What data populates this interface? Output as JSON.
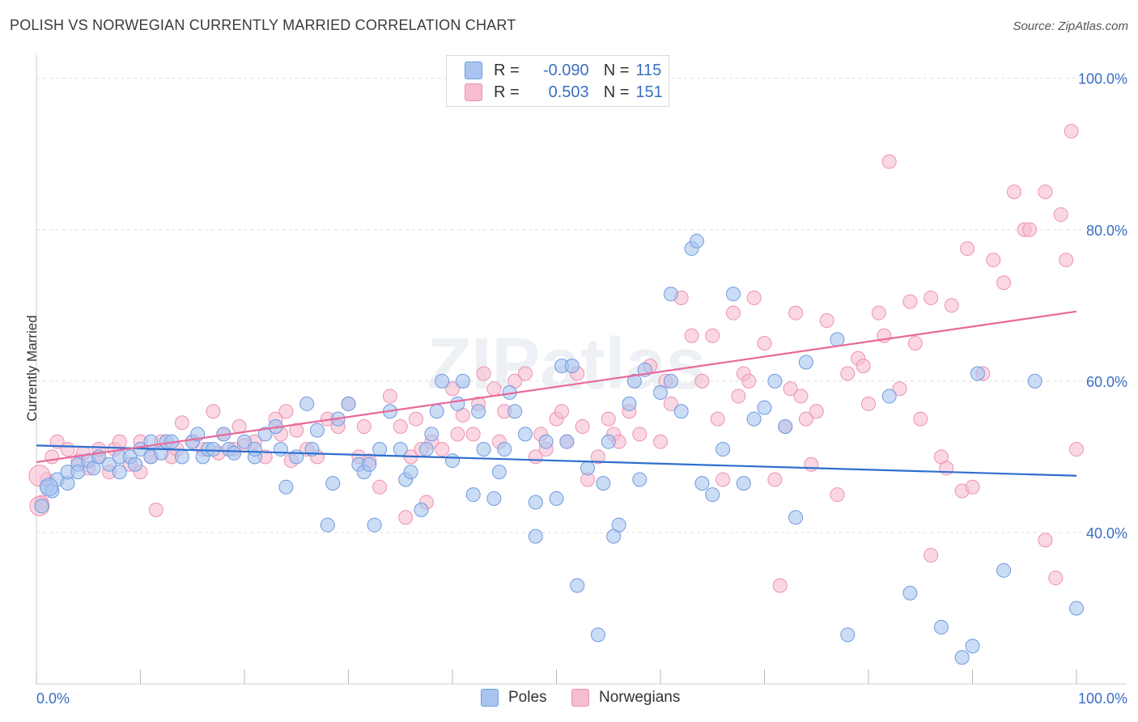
{
  "title": "POLISH VS NORWEGIAN CURRENTLY MARRIED CORRELATION CHART",
  "source": "Source: ZipAtlas.com",
  "watermark": "ZIPatlas",
  "legend": {
    "row1": {
      "r_label": "R =",
      "r_value": "-0.090",
      "n_label": "N =",
      "n_value": "115"
    },
    "row2": {
      "r_label": "R =",
      "r_value": "0.503",
      "n_label": "N =",
      "n_value": "151"
    }
  },
  "bottom_legend": {
    "poles": "Poles",
    "norwegians": "Norwegians"
  },
  "colors": {
    "poles_fill": "#a9c4ee",
    "poles_stroke": "#6f9be0",
    "poles_line": "#2f6fd0",
    "nor_fill": "#f6bcd0",
    "nor_stroke": "#ec93b2",
    "nor_line": "#e8699a",
    "axis_label": "#3a6fc2",
    "grid": "#dddddd"
  },
  "chart_data": {
    "type": "scatter",
    "title": "POLISH VS NORWEGIAN CURRENTLY MARRIED CORRELATION CHART",
    "ylabel": "Currently Married",
    "xlabel": "",
    "xlim": [
      0,
      100
    ],
    "ylim": [
      20,
      102
    ],
    "x_ticks": [
      "0.0%",
      "100.0%"
    ],
    "y_ticks": [
      {
        "v": 40,
        "label": "40.0%"
      },
      {
        "v": 60,
        "label": "60.0%"
      },
      {
        "v": 80,
        "label": "80.0%"
      },
      {
        "v": 100,
        "label": "100.0%"
      }
    ],
    "grid": true,
    "legend_position": "top-center",
    "series": [
      {
        "name": "Poles",
        "r": -0.09,
        "n": 115,
        "trend": [
          [
            0,
            51.5
          ],
          [
            100,
            47.5
          ]
        ],
        "points": [
          [
            0.5,
            43.5
          ],
          [
            1,
            46
          ],
          [
            1.5,
            45.5
          ],
          [
            2,
            47
          ],
          [
            3,
            46.5
          ],
          [
            3,
            48
          ],
          [
            4,
            49
          ],
          [
            4,
            48
          ],
          [
            5,
            49.5
          ],
          [
            5.5,
            48.5
          ],
          [
            6,
            50
          ],
          [
            7,
            49
          ],
          [
            8,
            48
          ],
          [
            8,
            50
          ],
          [
            9,
            50
          ],
          [
            9.5,
            49
          ],
          [
            10,
            51
          ],
          [
            11,
            50
          ],
          [
            11,
            52
          ],
          [
            12,
            50.5
          ],
          [
            12.5,
            52
          ],
          [
            13,
            52
          ],
          [
            14,
            50
          ],
          [
            15,
            52
          ],
          [
            15.5,
            53
          ],
          [
            16,
            50
          ],
          [
            16.5,
            51
          ],
          [
            17,
            51
          ],
          [
            18,
            53
          ],
          [
            18.5,
            51
          ],
          [
            19,
            50.5
          ],
          [
            20,
            52
          ],
          [
            21,
            50
          ],
          [
            21,
            51
          ],
          [
            22,
            53
          ],
          [
            23,
            54
          ],
          [
            23.5,
            51
          ],
          [
            24,
            46
          ],
          [
            25,
            50
          ],
          [
            26,
            57
          ],
          [
            26.5,
            51
          ],
          [
            27,
            53.5
          ],
          [
            28,
            41
          ],
          [
            28.5,
            46.5
          ],
          [
            29,
            55
          ],
          [
            30,
            57
          ],
          [
            31,
            49
          ],
          [
            31.5,
            48
          ],
          [
            32,
            49
          ],
          [
            32.5,
            41
          ],
          [
            33,
            51
          ],
          [
            34,
            56
          ],
          [
            35,
            51
          ],
          [
            35.5,
            47
          ],
          [
            36,
            48
          ],
          [
            37,
            43
          ],
          [
            37.5,
            51
          ],
          [
            38,
            53
          ],
          [
            38.5,
            56
          ],
          [
            39,
            60
          ],
          [
            40,
            49.5
          ],
          [
            40.5,
            57
          ],
          [
            41,
            60
          ],
          [
            42,
            45
          ],
          [
            42.5,
            56
          ],
          [
            43,
            51
          ],
          [
            44,
            44.5
          ],
          [
            44.5,
            48
          ],
          [
            45,
            51
          ],
          [
            45.5,
            58.5
          ],
          [
            46,
            56
          ],
          [
            47,
            53
          ],
          [
            48,
            44
          ],
          [
            48,
            39.5
          ],
          [
            49,
            52
          ],
          [
            50,
            44.5
          ],
          [
            50.5,
            62
          ],
          [
            51,
            52
          ],
          [
            51.5,
            62
          ],
          [
            52,
            33
          ],
          [
            53,
            48.5
          ],
          [
            54,
            26.5
          ],
          [
            54.5,
            46.5
          ],
          [
            55,
            52
          ],
          [
            55.5,
            39.5
          ],
          [
            56,
            41
          ],
          [
            57,
            57
          ],
          [
            57.5,
            60
          ],
          [
            58,
            47
          ],
          [
            58.5,
            61.5
          ],
          [
            60,
            58.5
          ],
          [
            61,
            60
          ],
          [
            61,
            71.5
          ],
          [
            62,
            56
          ],
          [
            63,
            77.5
          ],
          [
            63.5,
            78.5
          ],
          [
            64,
            46.5
          ],
          [
            65,
            45
          ],
          [
            66,
            51
          ],
          [
            67,
            71.5
          ],
          [
            68,
            46.5
          ],
          [
            69,
            55
          ],
          [
            70,
            56.5
          ],
          [
            71,
            60
          ],
          [
            72,
            54
          ],
          [
            73,
            42
          ],
          [
            74,
            62.5
          ],
          [
            77,
            65.5
          ],
          [
            78,
            26.5
          ],
          [
            82,
            58
          ],
          [
            84,
            32
          ],
          [
            87,
            27.5
          ],
          [
            89,
            23.5
          ],
          [
            90,
            25
          ],
          [
            90.5,
            61
          ],
          [
            93,
            35
          ],
          [
            96,
            60
          ],
          [
            100,
            30
          ]
        ]
      },
      {
        "name": "Norwegians",
        "r": 0.503,
        "n": 151,
        "trend": [
          [
            0,
            49.3
          ],
          [
            100,
            69.2
          ]
        ],
        "points": [
          [
            0.5,
            44
          ],
          [
            1,
            47
          ],
          [
            1.5,
            50
          ],
          [
            2,
            52
          ],
          [
            3,
            51
          ],
          [
            4,
            49.5
          ],
          [
            4.5,
            50.5
          ],
          [
            5,
            48.5
          ],
          [
            6,
            50
          ],
          [
            6,
            51
          ],
          [
            7,
            48
          ],
          [
            7.5,
            51
          ],
          [
            8,
            52
          ],
          [
            9,
            49
          ],
          [
            10,
            52
          ],
          [
            10,
            48
          ],
          [
            11,
            50
          ],
          [
            11.5,
            43
          ],
          [
            12,
            52
          ],
          [
            13,
            50
          ],
          [
            13.5,
            51
          ],
          [
            14,
            54.5
          ],
          [
            15,
            52
          ],
          [
            16,
            51
          ],
          [
            17,
            56
          ],
          [
            17.5,
            50.5
          ],
          [
            18,
            53
          ],
          [
            19,
            51
          ],
          [
            19.5,
            54
          ],
          [
            20,
            51.5
          ],
          [
            21,
            52
          ],
          [
            22,
            50
          ],
          [
            23,
            55
          ],
          [
            23.5,
            53
          ],
          [
            24,
            56
          ],
          [
            24.5,
            49.5
          ],
          [
            25,
            53.5
          ],
          [
            26,
            51
          ],
          [
            27,
            50
          ],
          [
            28,
            55
          ],
          [
            29,
            54
          ],
          [
            30,
            57
          ],
          [
            31,
            50
          ],
          [
            31.5,
            54
          ],
          [
            32,
            49.5
          ],
          [
            33,
            46
          ],
          [
            34,
            58
          ],
          [
            35,
            54
          ],
          [
            35.5,
            42
          ],
          [
            36,
            50
          ],
          [
            36.5,
            55
          ],
          [
            37,
            51
          ],
          [
            37.5,
            44
          ],
          [
            38,
            52
          ],
          [
            39,
            51
          ],
          [
            40,
            59
          ],
          [
            40.5,
            53
          ],
          [
            41,
            55.5
          ],
          [
            42,
            53
          ],
          [
            42.5,
            57
          ],
          [
            43,
            61
          ],
          [
            44,
            59
          ],
          [
            44.5,
            52
          ],
          [
            45,
            56
          ],
          [
            46,
            60
          ],
          [
            47,
            61
          ],
          [
            48,
            50
          ],
          [
            48.5,
            53
          ],
          [
            49,
            51
          ],
          [
            50,
            55
          ],
          [
            50.5,
            56
          ],
          [
            51,
            52
          ],
          [
            52,
            61
          ],
          [
            52.5,
            54
          ],
          [
            53,
            47
          ],
          [
            54,
            50
          ],
          [
            55,
            55
          ],
          [
            55.5,
            53
          ],
          [
            56,
            52
          ],
          [
            57,
            56
          ],
          [
            58,
            53
          ],
          [
            59,
            62
          ],
          [
            60,
            52
          ],
          [
            60.5,
            60
          ],
          [
            61,
            57
          ],
          [
            62,
            71
          ],
          [
            63,
            66
          ],
          [
            64,
            60
          ],
          [
            65,
            66
          ],
          [
            65.5,
            55
          ],
          [
            66,
            47
          ],
          [
            67,
            69
          ],
          [
            67.5,
            58
          ],
          [
            68,
            61
          ],
          [
            68.5,
            60
          ],
          [
            69,
            71
          ],
          [
            70,
            65
          ],
          [
            71,
            47
          ],
          [
            71.5,
            33
          ],
          [
            72,
            54
          ],
          [
            72.5,
            59
          ],
          [
            73,
            69
          ],
          [
            73.5,
            58
          ],
          [
            74,
            55
          ],
          [
            74.5,
            49
          ],
          [
            75,
            56
          ],
          [
            76,
            68
          ],
          [
            77,
            45
          ],
          [
            78,
            61
          ],
          [
            79,
            63
          ],
          [
            79.5,
            62
          ],
          [
            80,
            57
          ],
          [
            81,
            69
          ],
          [
            81.5,
            66
          ],
          [
            82,
            89
          ],
          [
            83,
            59
          ],
          [
            84,
            70.5
          ],
          [
            84.5,
            65
          ],
          [
            85,
            55
          ],
          [
            86,
            71
          ],
          [
            87,
            50
          ],
          [
            87.5,
            48.5
          ],
          [
            88,
            70
          ],
          [
            89,
            45.5
          ],
          [
            89.5,
            77.5
          ],
          [
            90,
            46
          ],
          [
            91,
            61
          ],
          [
            92,
            76
          ],
          [
            93,
            73
          ],
          [
            94,
            85
          ],
          [
            95,
            80
          ],
          [
            95.5,
            80
          ],
          [
            97,
            85
          ],
          [
            98.5,
            82
          ],
          [
            99,
            76
          ],
          [
            100,
            51
          ]
        ]
      }
    ],
    "extra_norwegians": [
      [
        97,
        39
      ],
      [
        98,
        34
      ],
      [
        99.5,
        93
      ],
      [
        86,
        37
      ]
    ]
  }
}
